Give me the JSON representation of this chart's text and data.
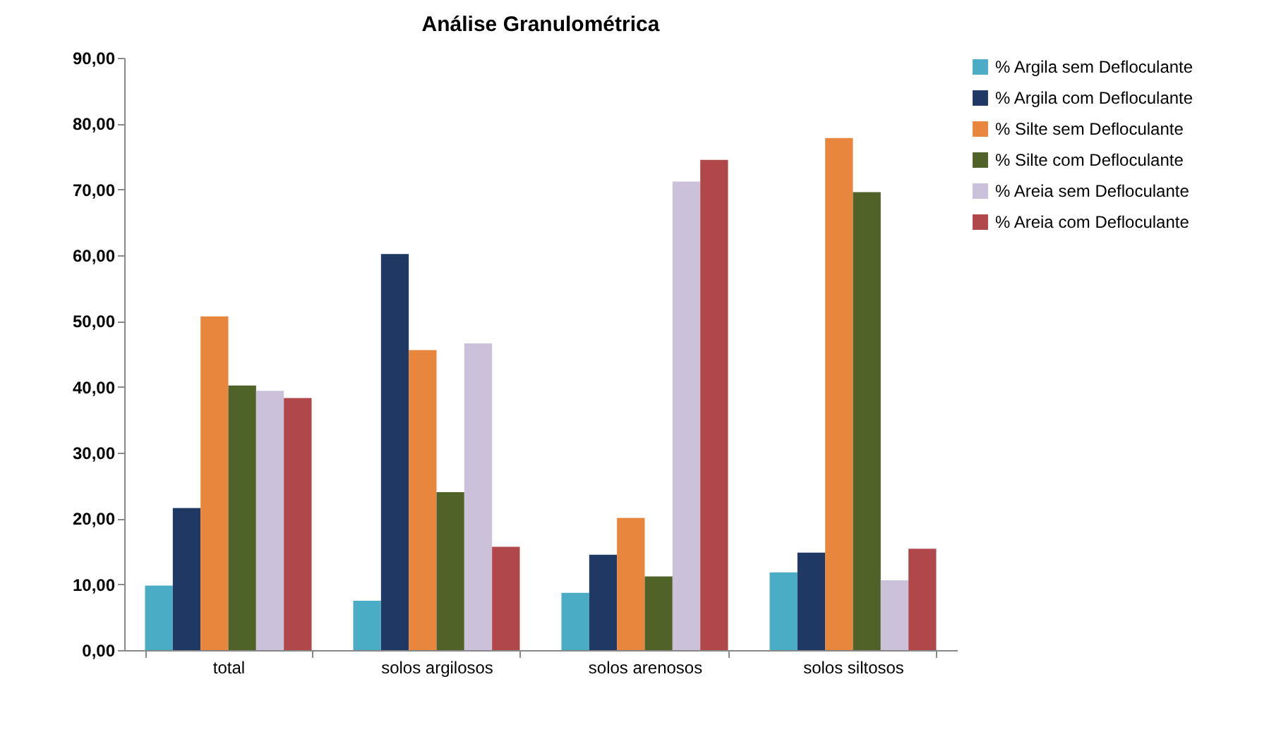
{
  "chart_data": {
    "type": "bar",
    "title": "Análise Granulométrica",
    "categories": [
      "total",
      "solos argilosos",
      "solos arenosos",
      "solos siltosos"
    ],
    "series": [
      {
        "name": "% Argila sem Defloculante",
        "color": "#4bacc6",
        "values": [
          9.8,
          7.5,
          8.7,
          11.8
        ]
      },
      {
        "name": "% Argila com Defloculante",
        "color": "#1f3864",
        "values": [
          21.6,
          60.2,
          14.5,
          14.8
        ]
      },
      {
        "name": "% Silte sem Defloculante",
        "color": "#e8863e",
        "values": [
          50.7,
          45.6,
          20.1,
          77.8
        ]
      },
      {
        "name": "% Silte com Defloculante",
        "color": "#4f6228",
        "values": [
          40.2,
          24.0,
          11.2,
          69.6
        ]
      },
      {
        "name": "% Areia sem Defloculante",
        "color": "#ccc1da",
        "values": [
          39.4,
          46.6,
          71.2,
          10.6
        ]
      },
      {
        "name": "% Areia com Defloculante",
        "color": "#b0474a",
        "values": [
          38.3,
          15.7,
          74.5,
          15.4
        ]
      }
    ],
    "ylim": [
      0,
      90
    ],
    "yticks": [
      {
        "value": 0,
        "label": "0,00"
      },
      {
        "value": 10,
        "label": "10,00"
      },
      {
        "value": 20,
        "label": "20,00"
      },
      {
        "value": 30,
        "label": "30,00"
      },
      {
        "value": 40,
        "label": "40,00"
      },
      {
        "value": 50,
        "label": "50,00"
      },
      {
        "value": 60,
        "label": "60,00"
      },
      {
        "value": 70,
        "label": "70,00"
      },
      {
        "value": 80,
        "label": "80,00"
      },
      {
        "value": 90,
        "label": "90,00"
      }
    ],
    "grid": false,
    "legend": "top right"
  }
}
